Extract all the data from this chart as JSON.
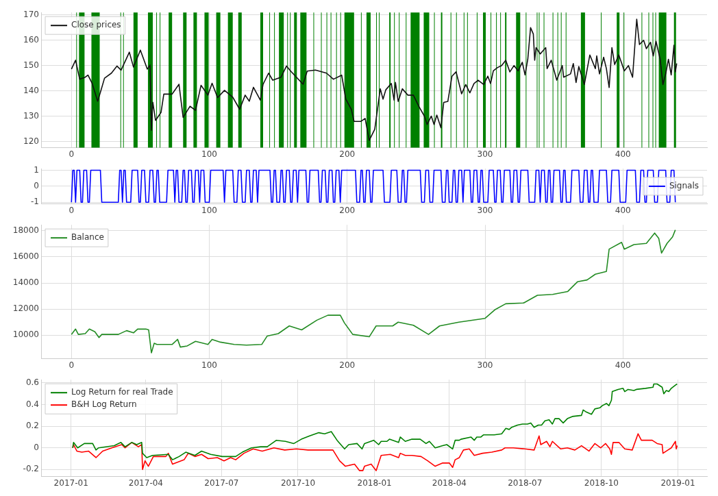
{
  "chart_data": [
    {
      "type": "line",
      "xlim": [
        -22,
        461
      ],
      "xticks": [
        0,
        100,
        200,
        300,
        400
      ],
      "ylim": [
        117.5,
        171
      ],
      "yticks": [
        120,
        130,
        140,
        150,
        160,
        170
      ],
      "grid": true,
      "legend": "top left",
      "series": [
        {
          "name": "Close prices",
          "color": "#111111",
          "x": [
            0,
            3,
            6,
            10,
            12,
            15,
            19,
            21,
            24,
            29,
            33,
            36,
            39,
            42,
            45,
            50,
            55,
            57,
            58,
            59,
            61,
            65,
            67,
            73,
            78,
            81,
            86,
            90,
            94,
            99,
            102,
            106,
            111,
            117,
            122,
            126,
            129,
            132,
            137,
            139,
            143,
            146,
            152,
            156,
            159,
            168,
            171,
            177,
            185,
            190,
            196,
            199,
            203,
            205,
            210,
            213,
            216,
            220,
            224,
            226,
            228,
            232,
            234,
            235,
            237,
            240,
            244,
            248,
            252,
            256,
            258,
            261,
            263,
            265,
            268,
            270,
            273,
            276,
            279,
            283,
            286,
            289,
            292,
            295,
            299,
            302,
            304,
            306,
            309,
            312,
            315,
            318,
            321,
            324,
            327,
            329,
            331,
            333,
            335,
            336,
            337,
            340,
            344,
            345,
            348,
            352,
            356,
            357,
            362,
            364,
            366,
            368,
            372,
            376,
            380,
            381,
            383,
            386,
            388,
            390,
            392,
            394,
            397,
            401,
            404,
            407,
            410,
            412,
            415,
            417,
            420,
            422,
            424,
            427,
            429,
            431,
            433,
            435,
            437,
            438,
            439
          ],
          "values": [
            148.6,
            152.1,
            144.6,
            145.4,
            146.2,
            143,
            135.9,
            139.4,
            145,
            147,
            149.8,
            148.2,
            151.7,
            155.3,
            149.4,
            156.1,
            148.6,
            150.2,
            124.4,
            135.5,
            128.3,
            131.5,
            138.7,
            138.7,
            142.6,
            129.5,
            133.9,
            132.3,
            142.2,
            138.3,
            143,
            137.3,
            140.2,
            137.5,
            132.7,
            138.3,
            135.9,
            141.4,
            136.3,
            142.6,
            147,
            144.2,
            145.4,
            149.8,
            147.8,
            142.6,
            147.8,
            148.2,
            147,
            144.6,
            146.2,
            136.7,
            132.7,
            127.9,
            127.9,
            129.1,
            120.4,
            124.8,
            140.8,
            136.7,
            140.4,
            142.9,
            136.3,
            143.3,
            135.8,
            140.8,
            138.3,
            138.3,
            133.8,
            130,
            126.7,
            130,
            126.7,
            130.4,
            125.4,
            135.4,
            135.8,
            145.8,
            147.5,
            138.8,
            142.5,
            139.2,
            142.9,
            144.2,
            142.5,
            145.8,
            142.9,
            147.9,
            149.2,
            150,
            152.1,
            147.5,
            150,
            147.9,
            151.3,
            146.3,
            152.5,
            165,
            162.5,
            152.1,
            157.1,
            154.6,
            157.1,
            148.8,
            152.1,
            144.2,
            150,
            145.4,
            146.7,
            150.8,
            143.3,
            149.6,
            142.5,
            154.2,
            148.8,
            153.8,
            146.7,
            153.3,
            148.8,
            141.3,
            157.1,
            150.4,
            154.2,
            147.9,
            150,
            145.4,
            168.3,
            158.3,
            160,
            156.7,
            159.2,
            153.8,
            159.6,
            152.5,
            142.5,
            146.7,
            152.5,
            146.3,
            158,
            147.5,
            150.8
          ]
        }
      ],
      "bands": [
        {
          "axis": "x",
          "from": 3.5,
          "to": 4,
          "color": "#008000"
        },
        {
          "axis": "x",
          "from": 5.5,
          "to": 9.5,
          "color": "#008000"
        },
        {
          "axis": "x",
          "from": 14.5,
          "to": 20.5,
          "color": "#008000"
        },
        {
          "axis": "x",
          "from": 35.5,
          "to": 36,
          "color": "#008000"
        },
        {
          "axis": "x",
          "from": 37.5,
          "to": 38,
          "color": "#008000"
        },
        {
          "axis": "x",
          "from": 45,
          "to": 48,
          "color": "#008000"
        },
        {
          "axis": "x",
          "from": 55.5,
          "to": 59,
          "color": "#008000"
        },
        {
          "axis": "x",
          "from": 61.5,
          "to": 62,
          "color": "#008000"
        },
        {
          "axis": "x",
          "from": 64,
          "to": 64.5,
          "color": "#008000"
        },
        {
          "axis": "x",
          "from": 70.5,
          "to": 73,
          "color": "#008000"
        },
        {
          "axis": "x",
          "from": 81,
          "to": 83.5,
          "color": "#008000"
        },
        {
          "axis": "x",
          "from": 88.5,
          "to": 91,
          "color": "#008000"
        },
        {
          "axis": "x",
          "from": 96.5,
          "to": 99.5,
          "color": "#008000"
        },
        {
          "axis": "x",
          "from": 105,
          "to": 108,
          "color": "#008000"
        },
        {
          "axis": "x",
          "from": 113.5,
          "to": 117,
          "color": "#008000"
        },
        {
          "axis": "x",
          "from": 121,
          "to": 123.5,
          "color": "#008000"
        },
        {
          "axis": "x",
          "from": 137,
          "to": 139,
          "color": "#008000"
        },
        {
          "axis": "x",
          "from": 143.5,
          "to": 144,
          "color": "#008000"
        },
        {
          "axis": "x",
          "from": 147,
          "to": 147.5,
          "color": "#008000"
        },
        {
          "axis": "x",
          "from": 150.5,
          "to": 154,
          "color": "#008000"
        },
        {
          "axis": "x",
          "from": 156.5,
          "to": 157,
          "color": "#008000"
        },
        {
          "axis": "x",
          "from": 158.5,
          "to": 159,
          "color": "#008000"
        },
        {
          "axis": "x",
          "from": 161.5,
          "to": 163.5,
          "color": "#008000"
        },
        {
          "axis": "x",
          "from": 166,
          "to": 170.5,
          "color": "#008000"
        },
        {
          "axis": "x",
          "from": 175.5,
          "to": 176,
          "color": "#008000"
        },
        {
          "axis": "x",
          "from": 181,
          "to": 181.5,
          "color": "#008000"
        },
        {
          "axis": "x",
          "from": 185,
          "to": 185.5,
          "color": "#008000"
        },
        {
          "axis": "x",
          "from": 188,
          "to": 188.5,
          "color": "#008000"
        },
        {
          "axis": "x",
          "from": 192,
          "to": 192.5,
          "color": "#008000"
        },
        {
          "axis": "x",
          "from": 195,
          "to": 195.5,
          "color": "#008000"
        },
        {
          "axis": "x",
          "from": 198,
          "to": 205,
          "color": "#008000"
        },
        {
          "axis": "x",
          "from": 210,
          "to": 210.5,
          "color": "#008000"
        },
        {
          "axis": "x",
          "from": 214,
          "to": 217,
          "color": "#008000"
        },
        {
          "axis": "x",
          "from": 221,
          "to": 221.5,
          "color": "#008000"
        },
        {
          "axis": "x",
          "from": 223,
          "to": 223.5,
          "color": "#008000"
        },
        {
          "axis": "x",
          "from": 230.5,
          "to": 231.5,
          "color": "#008000"
        },
        {
          "axis": "x",
          "from": 234,
          "to": 234.5,
          "color": "#008000"
        },
        {
          "axis": "x",
          "from": 237.5,
          "to": 238,
          "color": "#008000"
        },
        {
          "axis": "x",
          "from": 242.5,
          "to": 243,
          "color": "#008000"
        },
        {
          "axis": "x",
          "from": 246,
          "to": 252.5,
          "color": "#008000"
        },
        {
          "axis": "x",
          "from": 255.5,
          "to": 259.5,
          "color": "#008000"
        },
        {
          "axis": "x",
          "from": 263,
          "to": 263.5,
          "color": "#008000"
        },
        {
          "axis": "x",
          "from": 268,
          "to": 269,
          "color": "#008000"
        },
        {
          "axis": "x",
          "from": 275,
          "to": 275.5,
          "color": "#008000"
        },
        {
          "axis": "x",
          "from": 279,
          "to": 279.5,
          "color": "#008000"
        },
        {
          "axis": "x",
          "from": 284.5,
          "to": 285,
          "color": "#008000"
        },
        {
          "axis": "x",
          "from": 287,
          "to": 287.5,
          "color": "#008000"
        },
        {
          "axis": "x",
          "from": 294,
          "to": 294.5,
          "color": "#008000"
        },
        {
          "axis": "x",
          "from": 298.5,
          "to": 300.5,
          "color": "#008000"
        },
        {
          "axis": "x",
          "from": 304,
          "to": 304.5,
          "color": "#008000"
        },
        {
          "axis": "x",
          "from": 308,
          "to": 308.5,
          "color": "#008000"
        },
        {
          "axis": "x",
          "from": 311,
          "to": 311.5,
          "color": "#008000"
        },
        {
          "axis": "x",
          "from": 314.5,
          "to": 315.5,
          "color": "#008000"
        },
        {
          "axis": "x",
          "from": 322.5,
          "to": 325.5,
          "color": "#008000"
        },
        {
          "axis": "x",
          "from": 329.5,
          "to": 330,
          "color": "#008000"
        },
        {
          "axis": "x",
          "from": 337.5,
          "to": 338,
          "color": "#008000"
        },
        {
          "axis": "x",
          "from": 339,
          "to": 339.5,
          "color": "#008000"
        },
        {
          "axis": "x",
          "from": 342.5,
          "to": 343,
          "color": "#008000"
        },
        {
          "axis": "x",
          "from": 349,
          "to": 349.5,
          "color": "#008000"
        },
        {
          "axis": "x",
          "from": 352.5,
          "to": 353,
          "color": "#008000"
        },
        {
          "axis": "x",
          "from": 355,
          "to": 355.5,
          "color": "#008000"
        },
        {
          "axis": "x",
          "from": 358.5,
          "to": 359,
          "color": "#008000"
        },
        {
          "axis": "x",
          "from": 369.5,
          "to": 372.5,
          "color": "#008000"
        },
        {
          "axis": "x",
          "from": 384,
          "to": 384.5,
          "color": "#008000"
        },
        {
          "axis": "x",
          "from": 395.5,
          "to": 397.5,
          "color": "#008000"
        },
        {
          "axis": "x",
          "from": 400.5,
          "to": 401,
          "color": "#008000"
        },
        {
          "axis": "x",
          "from": 413.5,
          "to": 414,
          "color": "#008000"
        },
        {
          "axis": "x",
          "from": 418.5,
          "to": 419,
          "color": "#008000"
        },
        {
          "axis": "x",
          "from": 421.5,
          "to": 422,
          "color": "#008000"
        },
        {
          "axis": "x",
          "from": 423.5,
          "to": 424,
          "color": "#008000"
        },
        {
          "axis": "x",
          "from": 426,
          "to": 431.5,
          "color": "#008000"
        },
        {
          "axis": "x",
          "from": 437,
          "to": 438.5,
          "color": "#008000"
        }
      ]
    },
    {
      "type": "line",
      "xlim": [
        -22,
        461
      ],
      "xticks": [
        0,
        100,
        200,
        300,
        400
      ],
      "ylim": [
        -1.1,
        1.1
      ],
      "yticks": [
        -1,
        0,
        1
      ],
      "grid": true,
      "legend": "right",
      "series": [
        {
          "name": "Signals",
          "color": "#0000ff",
          "x": [
            0,
            1,
            2,
            3,
            4,
            6,
            7,
            8,
            9,
            11,
            12,
            13,
            14,
            21,
            22,
            34,
            35,
            36,
            37,
            38,
            39,
            40,
            43,
            44,
            48,
            49,
            50,
            51,
            53,
            54,
            56,
            57,
            59,
            60,
            61,
            62,
            63,
            64,
            69,
            70,
            74,
            75,
            76,
            77,
            78,
            80,
            81,
            82,
            83,
            84,
            85,
            87,
            88,
            89,
            90,
            92,
            93,
            94,
            96,
            97,
            100,
            101,
            110,
            111,
            112,
            117,
            118,
            120,
            121,
            123,
            124,
            126,
            127,
            129,
            130,
            131,
            132,
            134,
            135,
            136,
            144,
            145,
            146,
            147,
            148,
            149,
            151,
            152,
            153,
            154,
            155,
            156,
            158,
            159,
            160,
            161,
            163,
            164,
            165,
            170,
            171,
            172,
            173,
            179,
            180,
            181,
            182,
            184,
            185,
            186,
            187,
            189,
            190,
            191,
            192,
            194,
            195,
            196,
            206,
            207,
            209,
            210,
            211,
            212,
            213,
            214,
            216,
            217,
            218,
            219,
            226,
            227,
            231,
            232,
            236,
            237,
            239,
            240,
            241,
            242,
            243,
            244,
            253,
            254,
            256,
            257,
            259,
            260,
            262,
            263,
            268,
            269,
            271,
            272,
            273,
            274,
            276,
            277,
            278,
            279,
            280,
            281,
            283,
            284,
            285,
            289,
            290,
            291,
            292,
            294,
            295,
            296,
            297,
            298,
            299,
            302,
            303,
            306,
            307,
            308,
            309,
            311,
            312,
            313,
            314,
            318,
            319,
            320,
            321,
            323,
            324,
            325,
            326,
            331,
            332,
            336,
            337,
            339,
            340,
            341,
            343,
            344,
            345,
            346,
            347,
            348,
            349,
            350,
            354,
            355,
            356,
            357,
            358,
            359,
            362,
            363,
            368,
            369,
            371,
            372,
            374,
            375,
            376,
            377,
            378,
            379,
            382,
            383,
            388,
            389,
            391,
            392,
            397,
            398,
            402,
            403,
            409,
            410,
            412,
            413,
            415,
            416,
            417,
            418,
            422,
            423,
            425,
            426,
            431,
            432,
            434,
            435,
            437,
            438
          ],
          "values": [
            -1,
            1,
            1,
            -1,
            1,
            1,
            -1,
            -1,
            1,
            1,
            -1,
            -1,
            1,
            1,
            -1,
            -1,
            1,
            1,
            -1,
            1,
            1,
            -1,
            -1,
            1,
            1,
            -1,
            -1,
            1,
            1,
            -1,
            -1,
            1,
            1,
            -1,
            -1,
            1,
            1,
            -1,
            -1,
            1,
            1,
            -1,
            1,
            1,
            -1,
            -1,
            1,
            1,
            -1,
            -1,
            1,
            1,
            -1,
            -1,
            1,
            1,
            -1,
            1,
            1,
            -1,
            -1,
            1,
            1,
            -1,
            1,
            1,
            -1,
            -1,
            1,
            1,
            -1,
            -1,
            1,
            1,
            -1,
            -1,
            1,
            1,
            -1,
            1,
            1,
            -1,
            -1,
            1,
            1,
            -1,
            -1,
            1,
            1,
            -1,
            -1,
            1,
            1,
            -1,
            -1,
            1,
            1,
            -1,
            1,
            1,
            -1,
            -1,
            1,
            1,
            -1,
            -1,
            1,
            1,
            -1,
            -1,
            1,
            1,
            -1,
            -1,
            1,
            1,
            -1,
            1,
            1,
            -1,
            -1,
            1,
            1,
            -1,
            -1,
            1,
            1,
            -1,
            -1,
            1,
            1,
            -1,
            -1,
            1,
            1,
            -1,
            -1,
            1,
            1,
            -1,
            -1,
            1,
            1,
            -1,
            -1,
            1,
            1,
            -1,
            -1,
            1,
            1,
            -1,
            -1,
            1,
            1,
            -1,
            -1,
            1,
            1,
            -1,
            -1,
            1,
            1,
            -1,
            1,
            1,
            -1,
            -1,
            1,
            1,
            -1,
            -1,
            1,
            1,
            -1,
            -1,
            1,
            1,
            -1,
            -1,
            1,
            1,
            -1,
            -1,
            1,
            1,
            -1,
            -1,
            1,
            1,
            -1,
            -1,
            1,
            1,
            -1,
            -1,
            1,
            1,
            -1,
            1,
            1,
            -1,
            -1,
            1,
            1,
            -1,
            -1,
            1,
            1,
            -1,
            -1,
            1,
            1,
            -1,
            -1,
            1,
            1,
            -1,
            -1,
            1,
            1,
            -1,
            -1,
            1,
            1,
            -1,
            -1,
            1,
            1,
            -1,
            -1,
            1,
            1,
            -1,
            -1,
            1,
            1,
            -1,
            -1,
            1,
            1,
            -1,
            -1,
            1,
            1,
            -1,
            -1,
            1,
            1,
            -1,
            -1,
            1,
            1,
            -1
          ]
        }
      ]
    },
    {
      "type": "line",
      "xlim": [
        -22,
        461
      ],
      "xticks": [
        0,
        100,
        200,
        300,
        400
      ],
      "ylim": [
        8200,
        18450
      ],
      "yticks": [
        10000,
        12000,
        14000,
        16000,
        18000
      ],
      "grid": true,
      "legend": "top left",
      "series": [
        {
          "name": "Balance",
          "color": "#228b22",
          "x": [
            0,
            3,
            5,
            10,
            13,
            17,
            20,
            22,
            34,
            40,
            45,
            48,
            54,
            56,
            58,
            60,
            62,
            73,
            77,
            79,
            84,
            90,
            99,
            102,
            108,
            118,
            127,
            138,
            142,
            150,
            158,
            167,
            178,
            186,
            195,
            198,
            204,
            216,
            221,
            233,
            237,
            248,
            259,
            267,
            281,
            300,
            307,
            315,
            328,
            338,
            349,
            360,
            367,
            374,
            380,
            388,
            390,
            399,
            401,
            408,
            417,
            423,
            426,
            428,
            432,
            436,
            438
          ],
          "values": [
            10060,
            10470,
            10060,
            10120,
            10470,
            10260,
            9820,
            10060,
            10060,
            10350,
            10180,
            10470,
            10470,
            10410,
            8650,
            9380,
            9290,
            9290,
            9680,
            9090,
            9180,
            9530,
            9290,
            9680,
            9470,
            9290,
            9240,
            9290,
            9940,
            10120,
            10710,
            10410,
            11150,
            11530,
            11530,
            10940,
            10060,
            9880,
            10710,
            10710,
            11000,
            10760,
            10060,
            10710,
            11000,
            11290,
            11940,
            12410,
            12470,
            13060,
            13120,
            13350,
            14090,
            14230,
            14670,
            14880,
            16590,
            17110,
            16590,
            16940,
            17030,
            17820,
            17410,
            16290,
            17030,
            17530,
            18060
          ]
        }
      ]
    },
    {
      "type": "line",
      "xlim": [
        "2016-11-26",
        "2019-02-05"
      ],
      "xticks": [
        "2017-01",
        "2017-04",
        "2017-07",
        "2017-10",
        "2018-01",
        "2018-04",
        "2018-07",
        "2018-10",
        "2019-01"
      ],
      "ylim": [
        -0.265,
        0.63
      ],
      "yticks": [
        -0.2,
        0.0,
        0.2,
        0.4,
        0.6
      ],
      "grid": true,
      "legend": "top left",
      "series": [
        {
          "name": "Log Return for real Trade",
          "color": "#008000",
          "x": [
            "2017-01-03",
            "2017-01-04",
            "2017-01-09",
            "2017-01-17",
            "2017-01-27",
            "2017-01-31",
            "2017-02-03",
            "2017-02-22",
            "2017-03-02",
            "2017-03-07",
            "2017-03-15",
            "2017-03-21",
            "2017-03-27",
            "2017-03-28",
            "2017-04-02",
            "2017-04-09",
            "2017-04-28",
            "2017-05-03",
            "2017-05-11",
            "2017-05-19",
            "2017-05-30",
            "2017-06-07",
            "2017-06-18",
            "2017-07-02",
            "2017-07-18",
            "2017-07-26",
            "2017-08-06",
            "2017-08-17",
            "2017-08-25",
            "2017-09-05",
            "2017-09-16",
            "2017-09-26",
            "2017-10-05",
            "2017-10-15",
            "2017-10-26",
            "2017-11-02",
            "2017-11-10",
            "2017-11-17",
            "2017-11-26",
            "2017-12-01",
            "2017-12-11",
            "2017-12-17",
            "2017-12-20",
            "2017-12-31",
            "2018-01-06",
            "2018-01-09",
            "2018-01-16",
            "2018-01-19",
            "2018-01-30",
            "2018-02-01",
            "2018-02-07",
            "2018-02-15",
            "2018-02-25",
            "2018-03-04",
            "2018-03-08",
            "2018-03-15",
            "2018-03-24",
            "2018-03-29",
            "2018-04-05",
            "2018-04-08",
            "2018-04-13",
            "2018-04-15",
            "2018-04-27",
            "2018-05-01",
            "2018-05-04",
            "2018-05-09",
            "2018-05-12",
            "2018-05-25",
            "2018-06-03",
            "2018-06-08",
            "2018-06-12",
            "2018-06-15",
            "2018-06-22",
            "2018-06-28",
            "2018-07-04",
            "2018-07-08",
            "2018-07-12",
            "2018-07-17",
            "2018-07-21",
            "2018-07-25",
            "2018-07-30",
            "2018-08-03",
            "2018-08-06",
            "2018-08-11",
            "2018-08-16",
            "2018-08-21",
            "2018-08-27",
            "2018-09-07",
            "2018-09-09",
            "2018-09-13",
            "2018-09-19",
            "2018-09-23",
            "2018-09-29",
            "2018-10-02",
            "2018-10-07",
            "2018-10-10",
            "2018-10-13",
            "2018-10-14",
            "2018-10-21",
            "2018-10-27",
            "2018-10-29",
            "2018-11-02",
            "2018-11-09",
            "2018-11-12",
            "2018-11-23",
            "2018-12-02",
            "2018-12-03",
            "2018-12-07",
            "2018-12-13",
            "2018-12-15",
            "2018-12-18",
            "2018-12-21",
            "2018-12-24",
            "2018-12-29",
            "2018-12-31"
          ],
          "values": [
            0,
            0.05,
            0,
            0.04,
            0.04,
            -0.02,
            0,
            0.02,
            0.05,
            0.01,
            0.05,
            0.03,
            0.05,
            -0.05,
            -0.09,
            -0.07,
            -0.06,
            -0.11,
            -0.08,
            -0.04,
            -0.07,
            -0.03,
            -0.06,
            -0.08,
            -0.08,
            -0.04,
            0,
            0.01,
            0.01,
            0.07,
            0.06,
            0.04,
            0.08,
            0.11,
            0.14,
            0.13,
            0.15,
            0.07,
            -0.01,
            0.03,
            0.04,
            -0.01,
            0.04,
            0.07,
            0.03,
            0.06,
            0.06,
            0.08,
            0.05,
            0.1,
            0.06,
            0.08,
            0.08,
            0.04,
            0.06,
            0,
            0.02,
            0.03,
            -0.01,
            0.07,
            0.07,
            0.08,
            0.1,
            0.07,
            0.1,
            0.1,
            0.12,
            0.12,
            0.13,
            0.18,
            0.17,
            0.19,
            0.21,
            0.22,
            0.22,
            0.23,
            0.19,
            0.21,
            0.21,
            0.25,
            0.26,
            0.22,
            0.27,
            0.27,
            0.23,
            0.27,
            0.29,
            0.3,
            0.35,
            0.33,
            0.31,
            0.36,
            0.37,
            0.39,
            0.41,
            0.39,
            0.44,
            0.52,
            0.54,
            0.55,
            0.52,
            0.54,
            0.53,
            0.54,
            0.55,
            0.56,
            0.59,
            0.59,
            0.56,
            0.5,
            0.53,
            0.52,
            0.55,
            0.58,
            0.59
          ]
        },
        {
          "name": "B&H Log Return",
          "color": "#ff0000",
          "x": [
            "2017-01-03",
            "2017-01-04",
            "2017-01-08",
            "2017-01-14",
            "2017-01-22",
            "2017-01-31",
            "2017-02-08",
            "2017-02-19",
            "2017-03-03",
            "2017-03-07",
            "2017-03-15",
            "2017-03-23",
            "2017-03-27",
            "2017-03-28",
            "2017-03-31",
            "2017-04-04",
            "2017-04-10",
            "2017-04-25",
            "2017-04-28",
            "2017-05-03",
            "2017-05-17",
            "2017-05-22",
            "2017-05-30",
            "2017-06-07",
            "2017-06-15",
            "2017-06-26",
            "2017-07-04",
            "2017-07-12",
            "2017-07-18",
            "2017-07-28",
            "2017-08-08",
            "2017-08-19",
            "2017-09-02",
            "2017-09-15",
            "2017-09-29",
            "2017-10-13",
            "2017-10-26",
            "2017-11-12",
            "2017-11-20",
            "2017-11-27",
            "2017-12-08",
            "2017-12-14",
            "2017-12-18",
            "2017-12-20",
            "2017-12-28",
            "2018-01-03",
            "2018-01-09",
            "2018-01-20",
            "2018-01-30",
            "2018-02-01",
            "2018-02-07",
            "2018-02-15",
            "2018-02-26",
            "2018-03-06",
            "2018-03-15",
            "2018-03-24",
            "2018-04-01",
            "2018-04-05",
            "2018-04-08",
            "2018-04-13",
            "2018-04-18",
            "2018-04-25",
            "2018-05-01",
            "2018-05-11",
            "2018-05-22",
            "2018-06-03",
            "2018-06-07",
            "2018-06-17",
            "2018-07-01",
            "2018-07-12",
            "2018-07-18",
            "2018-07-20",
            "2018-07-27",
            "2018-07-31",
            "2018-08-03",
            "2018-08-13",
            "2018-08-21",
            "2018-08-30",
            "2018-09-07",
            "2018-09-16",
            "2018-09-23",
            "2018-09-30",
            "2018-10-06",
            "2018-10-11",
            "2018-10-13",
            "2018-10-15",
            "2018-10-22",
            "2018-10-29",
            "2018-11-07",
            "2018-11-14",
            "2018-11-18",
            "2018-12-01",
            "2018-12-07",
            "2018-12-13",
            "2018-12-14",
            "2018-12-20",
            "2018-12-24",
            "2018-12-29",
            "2018-12-30",
            "2018-12-31"
          ],
          "values": [
            0,
            0.03,
            -0.03,
            -0.04,
            -0.03,
            -0.09,
            -0.03,
            0,
            0.03,
            0,
            0.05,
            0.01,
            0.03,
            -0.2,
            -0.12,
            -0.17,
            -0.08,
            -0.08,
            -0.05,
            -0.15,
            -0.11,
            -0.05,
            -0.08,
            -0.06,
            -0.1,
            -0.09,
            -0.12,
            -0.09,
            -0.11,
            -0.05,
            -0.01,
            -0.03,
            0,
            -0.02,
            -0.01,
            -0.02,
            -0.02,
            -0.02,
            -0.12,
            -0.17,
            -0.15,
            -0.21,
            -0.21,
            -0.17,
            -0.15,
            -0.21,
            -0.07,
            -0.06,
            -0.09,
            -0.05,
            -0.07,
            -0.07,
            -0.08,
            -0.12,
            -0.17,
            -0.14,
            -0.14,
            -0.18,
            -0.11,
            -0.09,
            -0.02,
            -0.01,
            -0.07,
            -0.05,
            -0.04,
            -0.02,
            0,
            0,
            -0.01,
            -0.02,
            0.11,
            0.03,
            0.06,
            0.01,
            0.06,
            -0.01,
            0,
            -0.02,
            0.02,
            -0.03,
            0.04,
            0,
            0.04,
            -0.01,
            -0.06,
            0.05,
            0.05,
            -0.01,
            -0.02,
            0.13,
            0.07,
            0.07,
            0.04,
            0.03,
            -0.05,
            -0.02,
            0,
            0.06,
            -0.01,
            0.02
          ]
        }
      ]
    }
  ]
}
